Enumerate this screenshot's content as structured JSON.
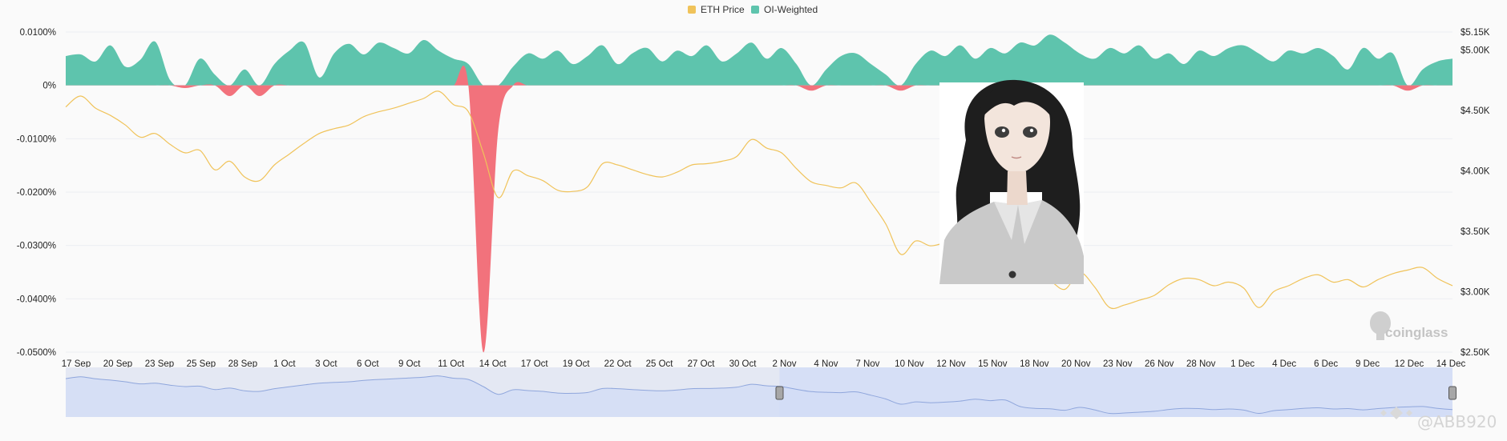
{
  "legend": {
    "eth_label": "ETH Price",
    "oi_label": "OI-Weighted"
  },
  "colors": {
    "eth": "#f0c35a",
    "positive": "#5ec4ad",
    "negative": "#f2727c",
    "navigator_fill": "#d2dcf6",
    "navigator_line": "#8fa6dc"
  },
  "watermark": {
    "brand": "coinglass",
    "footer": "@ABB920"
  },
  "chart_data": {
    "type": "area",
    "x_labels": [
      "17 Sep",
      "20 Sep",
      "23 Sep",
      "25 Sep",
      "28 Sep",
      "1 Oct",
      "3 Oct",
      "6 Oct",
      "9 Oct",
      "11 Oct",
      "14 Oct",
      "17 Oct",
      "19 Oct",
      "22 Oct",
      "25 Oct",
      "27 Oct",
      "30 Oct",
      "2 Nov",
      "4 Nov",
      "7 Nov",
      "10 Nov",
      "12 Nov",
      "15 Nov",
      "18 Nov",
      "20 Nov",
      "23 Nov",
      "26 Nov",
      "28 Nov",
      "1 Dec",
      "4 Dec",
      "6 Dec",
      "9 Dec",
      "12 Dec",
      "14 Dec"
    ],
    "y_left": {
      "min": -0.05,
      "max": 0.01,
      "ticks": [
        "0.0100%",
        "0%",
        "-0.0100%",
        "-0.0200%",
        "-0.0300%",
        "-0.0400%",
        "-0.0500%"
      ]
    },
    "y_right": {
      "min": 2500,
      "max": 5150,
      "ticks": [
        "$5.15K",
        "$5.00K",
        "$4.50K",
        "$4.00K",
        "$3.50K",
        "$3.00K",
        "$2.50K"
      ]
    },
    "series": [
      {
        "name": "OI-Weighted",
        "unit": "%",
        "values": [
          0.0055,
          0.0058,
          0.0045,
          0.0075,
          0.0035,
          0.0048,
          0.0082,
          0.001,
          -0.0005,
          0.005,
          0.002,
          -0.002,
          0.003,
          -0.002,
          0.004,
          0.0065,
          0.008,
          0.0015,
          0.006,
          0.0078,
          0.0058,
          0.008,
          0.007,
          0.006,
          0.0085,
          0.0065,
          0.005,
          0.004,
          -0.05,
          -0.0085,
          0.0035,
          0.006,
          0.005,
          0.0065,
          0.004,
          0.0055,
          0.0075,
          0.004,
          0.006,
          0.007,
          0.0045,
          0.0065,
          0.0055,
          0.0075,
          0.0045,
          0.006,
          0.008,
          0.005,
          0.007,
          0.004,
          -0.001,
          0.003,
          0.0055,
          0.006,
          0.004,
          0.002,
          -0.001,
          0.004,
          0.0065,
          0.0055,
          0.0075,
          0.005,
          0.007,
          0.006,
          0.008,
          0.0075,
          0.0095,
          0.008,
          0.006,
          0.005,
          0.007,
          0.006,
          0.0075,
          0.005,
          0.006,
          0.004,
          0.0065,
          0.0055,
          0.007,
          0.0075,
          0.006,
          0.0045,
          0.0065,
          0.006,
          0.007,
          0.0055,
          0.003,
          0.007,
          0.005,
          0.006,
          -0.001,
          0.003,
          0.0045,
          0.005
        ]
      },
      {
        "name": "ETH Price",
        "unit": "USD",
        "values": [
          4530,
          4620,
          4520,
          4460,
          4380,
          4280,
          4310,
          4220,
          4150,
          4170,
          4010,
          4080,
          3950,
          3920,
          4050,
          4140,
          4230,
          4310,
          4350,
          4380,
          4450,
          4490,
          4520,
          4560,
          4600,
          4660,
          4550,
          4490,
          4150,
          3780,
          4000,
          3960,
          3920,
          3840,
          3830,
          3870,
          4060,
          4050,
          4010,
          3970,
          3950,
          3990,
          4050,
          4060,
          4080,
          4120,
          4260,
          4190,
          4150,
          4020,
          3910,
          3880,
          3860,
          3900,
          3740,
          3560,
          3310,
          3420,
          3380,
          3410,
          3460,
          3550,
          3480,
          3510,
          3200,
          3110,
          3090,
          3020,
          3160,
          3040,
          2870,
          2890,
          2930,
          2970,
          3060,
          3110,
          3100,
          3050,
          3080,
          3030,
          2870,
          3000,
          3050,
          3110,
          3140,
          3080,
          3100,
          3040,
          3100,
          3150,
          3180,
          3200,
          3110,
          3050
        ]
      }
    ],
    "navigator": {
      "selected_range": [
        "2 Nov",
        "14 Dec"
      ]
    },
    "grid": true,
    "legend_position": "top-center"
  }
}
